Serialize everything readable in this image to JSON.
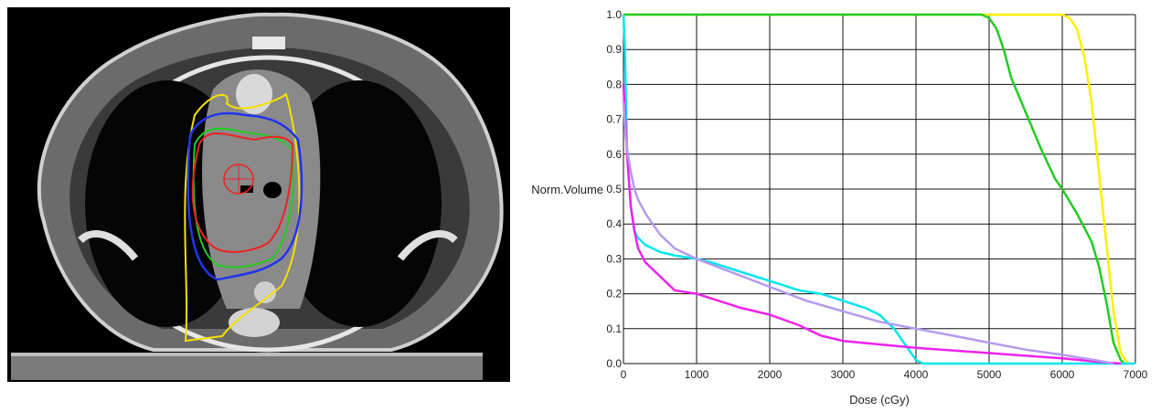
{
  "chart_data": {
    "type": "line",
    "xlabel": "Dose (cGy)",
    "ylabel": "Norm.Volume",
    "xlim": [
      0,
      7000
    ],
    "ylim": [
      0,
      1.0
    ],
    "grid": true,
    "x_ticks": [
      "0",
      "1000",
      "2000",
      "3000",
      "4000",
      "5000",
      "6000",
      "7000"
    ],
    "y_ticks": [
      "0.0",
      "0.1",
      "0.2",
      "0.3",
      "0.4",
      "0.5",
      "0.6",
      "0.7",
      "0.8",
      "0.9",
      "1.0"
    ],
    "series": [
      {
        "color": "#ffee00",
        "x": [
          0,
          4900,
          6000,
          6100,
          6200,
          6300,
          6400,
          6500,
          6600,
          6700,
          6800,
          6900
        ],
        "y": [
          1.0,
          1.0,
          1.0,
          0.99,
          0.96,
          0.88,
          0.75,
          0.55,
          0.35,
          0.15,
          0.03,
          0.0
        ]
      },
      {
        "color": "#22cc22",
        "x": [
          0,
          4900,
          5000,
          5100,
          5200,
          5300,
          5500,
          5700,
          5900,
          6000,
          6200,
          6400,
          6500,
          6600,
          6700,
          6800,
          6850
        ],
        "y": [
          1.0,
          1.0,
          0.99,
          0.96,
          0.9,
          0.82,
          0.72,
          0.62,
          0.53,
          0.5,
          0.43,
          0.35,
          0.28,
          0.18,
          0.06,
          0.01,
          0.0
        ]
      },
      {
        "color": "#00e5ee",
        "x": [
          0,
          20,
          50,
          100,
          150,
          200,
          300,
          500,
          700,
          1000,
          1200,
          1500,
          1800,
          2100,
          2400,
          2700,
          3000,
          3300,
          3500,
          3700,
          3800,
          3900,
          4000,
          4100,
          5000,
          7000
        ],
        "y": [
          1.0,
          0.9,
          0.6,
          0.45,
          0.38,
          0.36,
          0.34,
          0.32,
          0.31,
          0.3,
          0.29,
          0.27,
          0.25,
          0.23,
          0.21,
          0.2,
          0.18,
          0.16,
          0.14,
          0.1,
          0.07,
          0.04,
          0.01,
          0.0,
          0.0,
          0.0
        ]
      },
      {
        "color": "#ee22ee",
        "x": [
          0,
          50,
          100,
          150,
          200,
          300,
          500,
          700,
          1000,
          1300,
          1600,
          2000,
          2400,
          2700,
          3000,
          3500,
          4000,
          5000,
          6000,
          6500,
          6800
        ],
        "y": [
          0.8,
          0.6,
          0.45,
          0.38,
          0.33,
          0.29,
          0.25,
          0.21,
          0.2,
          0.18,
          0.16,
          0.14,
          0.11,
          0.08,
          0.065,
          0.055,
          0.045,
          0.03,
          0.015,
          0.005,
          0.0
        ]
      },
      {
        "color": "#b59aee",
        "x": [
          0,
          30,
          60,
          100,
          150,
          200,
          300,
          400,
          500,
          700,
          1000,
          1500,
          2000,
          2500,
          3000,
          3500,
          4000,
          4500,
          5000,
          5500,
          6000,
          6500,
          6700
        ],
        "y": [
          0.75,
          0.65,
          0.6,
          0.55,
          0.5,
          0.47,
          0.43,
          0.4,
          0.37,
          0.33,
          0.3,
          0.26,
          0.22,
          0.18,
          0.15,
          0.12,
          0.1,
          0.08,
          0.06,
          0.04,
          0.025,
          0.008,
          0.0
        ]
      }
    ]
  }
}
